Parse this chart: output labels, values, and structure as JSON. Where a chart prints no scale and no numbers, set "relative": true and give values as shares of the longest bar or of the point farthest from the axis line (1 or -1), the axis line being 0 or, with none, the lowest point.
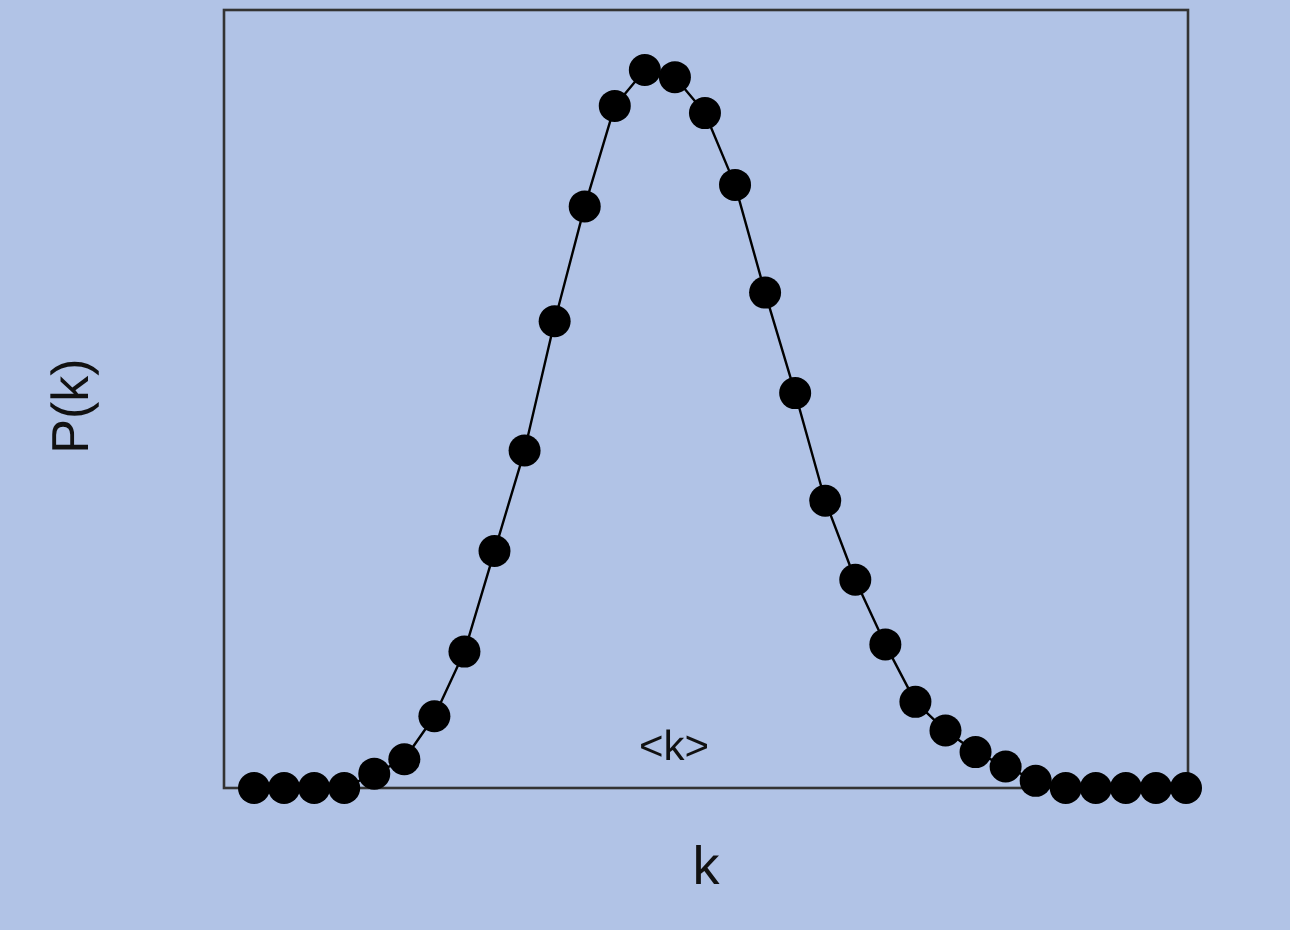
{
  "chart_data": {
    "type": "line",
    "xlabel": "k",
    "ylabel": "P(k)",
    "annotations": [
      "<k>"
    ],
    "categories": [
      null,
      null,
      null,
      null,
      null,
      null,
      null,
      null,
      null,
      null,
      null,
      null,
      null,
      null,
      null,
      null,
      null,
      null,
      null,
      null,
      null,
      null,
      null,
      null,
      null,
      null,
      null,
      null,
      null,
      null,
      null,
      null
    ],
    "relative": true,
    "marker": "circle",
    "line_style": "solid",
    "series": [
      {
        "color": "#000000",
        "values": [
          0,
          0,
          0,
          0,
          0.02,
          0.04,
          0.1,
          0.19,
          0.33,
          0.47,
          0.65,
          0.81,
          0.95,
          1,
          0.99,
          0.94,
          0.84,
          0.69,
          0.55,
          0.4,
          0.29,
          0.2,
          0.12,
          0.08,
          0.05,
          0.03,
          0.01,
          0,
          0,
          0,
          0,
          0
        ]
      }
    ]
  }
}
